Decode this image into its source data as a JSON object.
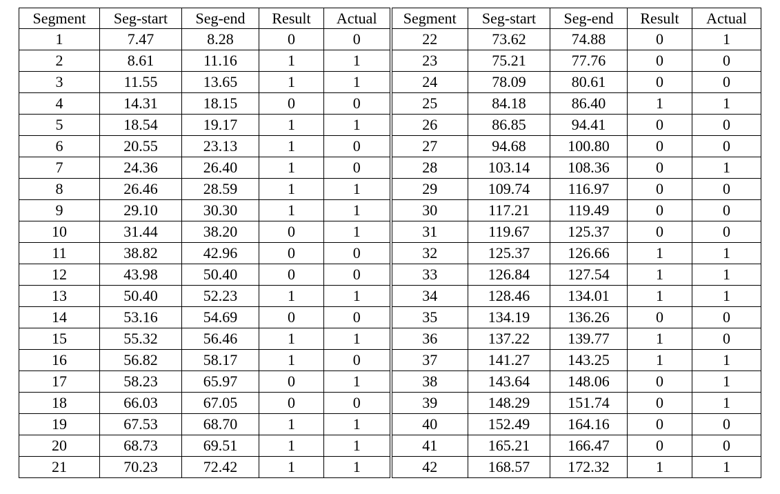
{
  "table": {
    "headers": [
      "Segment",
      "Seg-start",
      "Seg-end",
      "Result",
      "Actual",
      "Segment",
      "Seg-start",
      "Seg-end",
      "Result",
      "Actual"
    ],
    "rows": [
      [
        "1",
        "7.47",
        "8.28",
        "0",
        "0",
        "22",
        "73.62",
        "74.88",
        "0",
        "1"
      ],
      [
        "2",
        "8.61",
        "11.16",
        "1",
        "1",
        "23",
        "75.21",
        "77.76",
        "0",
        "0"
      ],
      [
        "3",
        "11.55",
        "13.65",
        "1",
        "1",
        "24",
        "78.09",
        "80.61",
        "0",
        "0"
      ],
      [
        "4",
        "14.31",
        "18.15",
        "0",
        "0",
        "25",
        "84.18",
        "86.40",
        "1",
        "1"
      ],
      [
        "5",
        "18.54",
        "19.17",
        "1",
        "1",
        "26",
        "86.85",
        "94.41",
        "0",
        "0"
      ],
      [
        "6",
        "20.55",
        "23.13",
        "1",
        "0",
        "27",
        "94.68",
        "100.80",
        "0",
        "0"
      ],
      [
        "7",
        "24.36",
        "26.40",
        "1",
        "0",
        "28",
        "103.14",
        "108.36",
        "0",
        "1"
      ],
      [
        "8",
        "26.46",
        "28.59",
        "1",
        "1",
        "29",
        "109.74",
        "116.97",
        "0",
        "0"
      ],
      [
        "9",
        "29.10",
        "30.30",
        "1",
        "1",
        "30",
        "117.21",
        "119.49",
        "0",
        "0"
      ],
      [
        "10",
        "31.44",
        "38.20",
        "0",
        "1",
        "31",
        "119.67",
        "125.37",
        "0",
        "0"
      ],
      [
        "11",
        "38.82",
        "42.96",
        "0",
        "0",
        "32",
        "125.37",
        "126.66",
        "1",
        "1"
      ],
      [
        "12",
        "43.98",
        "50.40",
        "0",
        "0",
        "33",
        "126.84",
        "127.54",
        "1",
        "1"
      ],
      [
        "13",
        "50.40",
        "52.23",
        "1",
        "1",
        "34",
        "128.46",
        "134.01",
        "1",
        "1"
      ],
      [
        "14",
        "53.16",
        "54.69",
        "0",
        "0",
        "35",
        "134.19",
        "136.26",
        "0",
        "0"
      ],
      [
        "15",
        "55.32",
        "56.46",
        "1",
        "1",
        "36",
        "137.22",
        "139.77",
        "1",
        "0"
      ],
      [
        "16",
        "56.82",
        "58.17",
        "1",
        "0",
        "37",
        "141.27",
        "143.25",
        "1",
        "1"
      ],
      [
        "17",
        "58.23",
        "65.97",
        "0",
        "1",
        "38",
        "143.64",
        "148.06",
        "0",
        "1"
      ],
      [
        "18",
        "66.03",
        "67.05",
        "0",
        "0",
        "39",
        "148.29",
        "151.74",
        "0",
        "1"
      ],
      [
        "19",
        "67.53",
        "68.70",
        "1",
        "1",
        "40",
        "152.49",
        "164.16",
        "0",
        "0"
      ],
      [
        "20",
        "68.73",
        "69.51",
        "1",
        "1",
        "41",
        "165.21",
        "166.47",
        "0",
        "0"
      ],
      [
        "21",
        "70.23",
        "72.42",
        "1",
        "1",
        "42",
        "168.57",
        "172.32",
        "1",
        "1"
      ]
    ]
  }
}
